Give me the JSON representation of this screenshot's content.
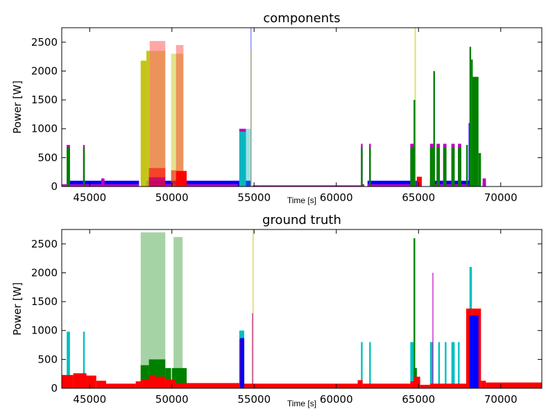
{
  "chart_data": [
    {
      "type": "area",
      "title": "components",
      "xlabel": "Time [s]",
      "ylabel": "Power [W]",
      "xlim": [
        43300,
        72500
      ],
      "ylim": [
        0,
        2750
      ],
      "xticks": [
        45000,
        50000,
        55000,
        60000,
        65000,
        70000
      ],
      "yticks": [
        0,
        500,
        1000,
        1500,
        2000,
        2500
      ],
      "grid": false,
      "series": [
        {
          "color": "#0000ff",
          "alpha": 1.0,
          "segments": [
            [
              43600,
              48000,
              100
            ],
            [
              48450,
              54150,
              100
            ],
            [
              54200,
              54800,
              100
            ],
            [
              61900,
              64900,
              100
            ],
            [
              65700,
              68200,
              100
            ],
            [
              68900,
              69100,
              60
            ]
          ]
        },
        {
          "color": "#bf00bf",
          "alpha": 1.0,
          "segments": [
            [
              43300,
              48000,
              40
            ],
            [
              45700,
              45900,
              140
            ],
            [
              48450,
              54000,
              40
            ],
            [
              54900,
              61500,
              20
            ],
            [
              61500,
              61700,
              40
            ],
            [
              61900,
              64500,
              40
            ],
            [
              65700,
              68200,
              40
            ],
            [
              68900,
              69100,
              140
            ],
            [
              54100,
              54500,
              1000
            ],
            [
              43600,
              43800,
              720
            ],
            [
              44600,
              44700,
              720
            ],
            [
              61500,
              61600,
              740
            ],
            [
              62000,
              62100,
              740
            ],
            [
              64500,
              64700,
              740
            ],
            [
              65700,
              65900,
              740
            ],
            [
              66100,
              66300,
              740
            ],
            [
              66500,
              66700,
              740
            ],
            [
              67000,
              67200,
              740
            ],
            [
              67400,
              67600,
              740
            ]
          ]
        },
        {
          "color": "#00bfbf",
          "alpha": 0.95,
          "segments": [
            [
              54100,
              54500,
              950
            ]
          ]
        },
        {
          "color": "#00bfbf",
          "alpha": 0.4,
          "segments": [
            [
              54500,
              54800,
              1000
            ]
          ]
        },
        {
          "color": "#7a7aff",
          "alpha": 0.9,
          "segments": [
            [
              54780,
              54840,
              2750
            ]
          ]
        },
        {
          "color": "#bfbf00",
          "alpha": 0.9,
          "segments": [
            [
              48100,
              48450,
              2180
            ],
            [
              48450,
              48650,
              2350
            ],
            [
              54800,
              54850,
              2350
            ]
          ]
        },
        {
          "color": "#bfbf00",
          "alpha": 0.45,
          "segments": [
            [
              48650,
              49600,
              2350
            ],
            [
              49950,
              50700,
              2300
            ],
            [
              64750,
              64850,
              2750
            ]
          ]
        },
        {
          "color": "#ff0000",
          "alpha": 0.35,
          "segments": [
            [
              48650,
              49600,
              2520
            ],
            [
              50250,
              50700,
              2450
            ]
          ]
        },
        {
          "color": "#8000ff",
          "alpha": 0.8,
          "segments": [
            [
              48600,
              49600,
              160
            ]
          ]
        },
        {
          "color": "#ff0000",
          "alpha": 0.55,
          "segments": [
            [
              48600,
              49600,
              320
            ],
            [
              49950,
              50250,
              280
            ]
          ]
        },
        {
          "color": "#ff0000",
          "alpha": 1.0,
          "segments": [
            [
              50250,
              50900,
              270
            ],
            [
              64900,
              65200,
              170
            ]
          ]
        },
        {
          "color": "#008000",
          "alpha": 1.0,
          "segments": [
            [
              43600,
              43800,
              680
            ],
            [
              44600,
              44700,
              680
            ],
            [
              61500,
              61600,
              680
            ],
            [
              62000,
              62100,
              680
            ],
            [
              64500,
              64800,
              680
            ],
            [
              64700,
              64800,
              1500
            ],
            [
              65700,
              65900,
              680
            ],
            [
              65900,
              66000,
              2000
            ],
            [
              66100,
              66300,
              680
            ],
            [
              66500,
              66700,
              680
            ],
            [
              67000,
              67200,
              680
            ],
            [
              67400,
              67600,
              680
            ],
            [
              67900,
              68000,
              720
            ],
            [
              68100,
              68200,
              2420
            ],
            [
              68200,
              68300,
              2200
            ],
            [
              68300,
              68650,
              1900
            ],
            [
              68650,
              68800,
              580
            ]
          ]
        },
        {
          "color": "#0000ff",
          "alpha": 1.0,
          "segments": [
            [
              68050,
              68100,
              1100
            ]
          ]
        }
      ]
    },
    {
      "type": "area",
      "title": "ground truth",
      "xlabel": "Time [s]",
      "ylabel": "Power [W]",
      "xlim": [
        43300,
        72500
      ],
      "ylim": [
        0,
        2750
      ],
      "xticks": [
        45000,
        50000,
        55000,
        60000,
        65000,
        70000
      ],
      "yticks": [
        0,
        500,
        1000,
        1500,
        2000,
        2500
      ],
      "grid": false,
      "series": [
        {
          "color": "#008000",
          "alpha": 0.35,
          "segments": [
            [
              48100,
              49600,
              2700
            ],
            [
              50100,
              50650,
              2620
            ]
          ]
        },
        {
          "color": "#008000",
          "alpha": 1.0,
          "segments": [
            [
              48100,
              48600,
              400
            ],
            [
              48600,
              49600,
              500
            ],
            [
              49600,
              49950,
              350
            ],
            [
              50000,
              50900,
              350
            ],
            [
              64650,
              64900,
              350
            ],
            [
              64700,
              64800,
              2600
            ]
          ]
        },
        {
          "color": "#00bfbf",
          "alpha": 1.0,
          "segments": [
            [
              43600,
              43800,
              980
            ],
            [
              44600,
              44700,
              980
            ],
            [
              54100,
              54400,
              1000
            ],
            [
              61500,
              61600,
              800
            ],
            [
              62000,
              62100,
              800
            ],
            [
              64500,
              64700,
              800
            ],
            [
              65700,
              65900,
              800
            ],
            [
              66200,
              66300,
              800
            ],
            [
              66600,
              66700,
              800
            ],
            [
              67000,
              67200,
              800
            ],
            [
              67400,
              67500,
              800
            ],
            [
              68100,
              68250,
              2100
            ]
          ]
        },
        {
          "color": "#bf00bf",
          "alpha": 1.0,
          "segments": [
            [
              54880,
              54930,
              1300
            ],
            [
              65850,
              65900,
              2000
            ]
          ]
        },
        {
          "color": "#bfbf00",
          "alpha": 0.9,
          "segments": [
            [
              54920,
              54950,
              2750
            ]
          ]
        },
        {
          "color": "#ff0000",
          "alpha": 1.0,
          "segments": [
            [
              43300,
              44000,
              230
            ],
            [
              44000,
              44800,
              260
            ],
            [
              44800,
              45400,
              220
            ],
            [
              45400,
              46000,
              130
            ],
            [
              46000,
              47800,
              80
            ],
            [
              47800,
              48100,
              120
            ],
            [
              48100,
              48600,
              150
            ],
            [
              48600,
              49000,
              230
            ],
            [
              49000,
              49600,
              200
            ],
            [
              49600,
              50200,
              150
            ],
            [
              50200,
              54100,
              90
            ],
            [
              54100,
              54400,
              850
            ],
            [
              54400,
              61300,
              80
            ],
            [
              61300,
              61600,
              140
            ],
            [
              61600,
              64500,
              80
            ],
            [
              64500,
              64700,
              120
            ],
            [
              64700,
              65100,
              200
            ],
            [
              65100,
              65700,
              60
            ],
            [
              65700,
              67900,
              80
            ],
            [
              67900,
              68250,
              1380
            ],
            [
              68250,
              68800,
              1380
            ],
            [
              68800,
              69100,
              130
            ],
            [
              69100,
              72500,
              100
            ]
          ]
        },
        {
          "color": "#0000ff",
          "alpha": 1.0,
          "segments": [
            [
              54150,
              54400,
              870
            ],
            [
              68100,
              68650,
              1260
            ]
          ]
        }
      ]
    }
  ]
}
